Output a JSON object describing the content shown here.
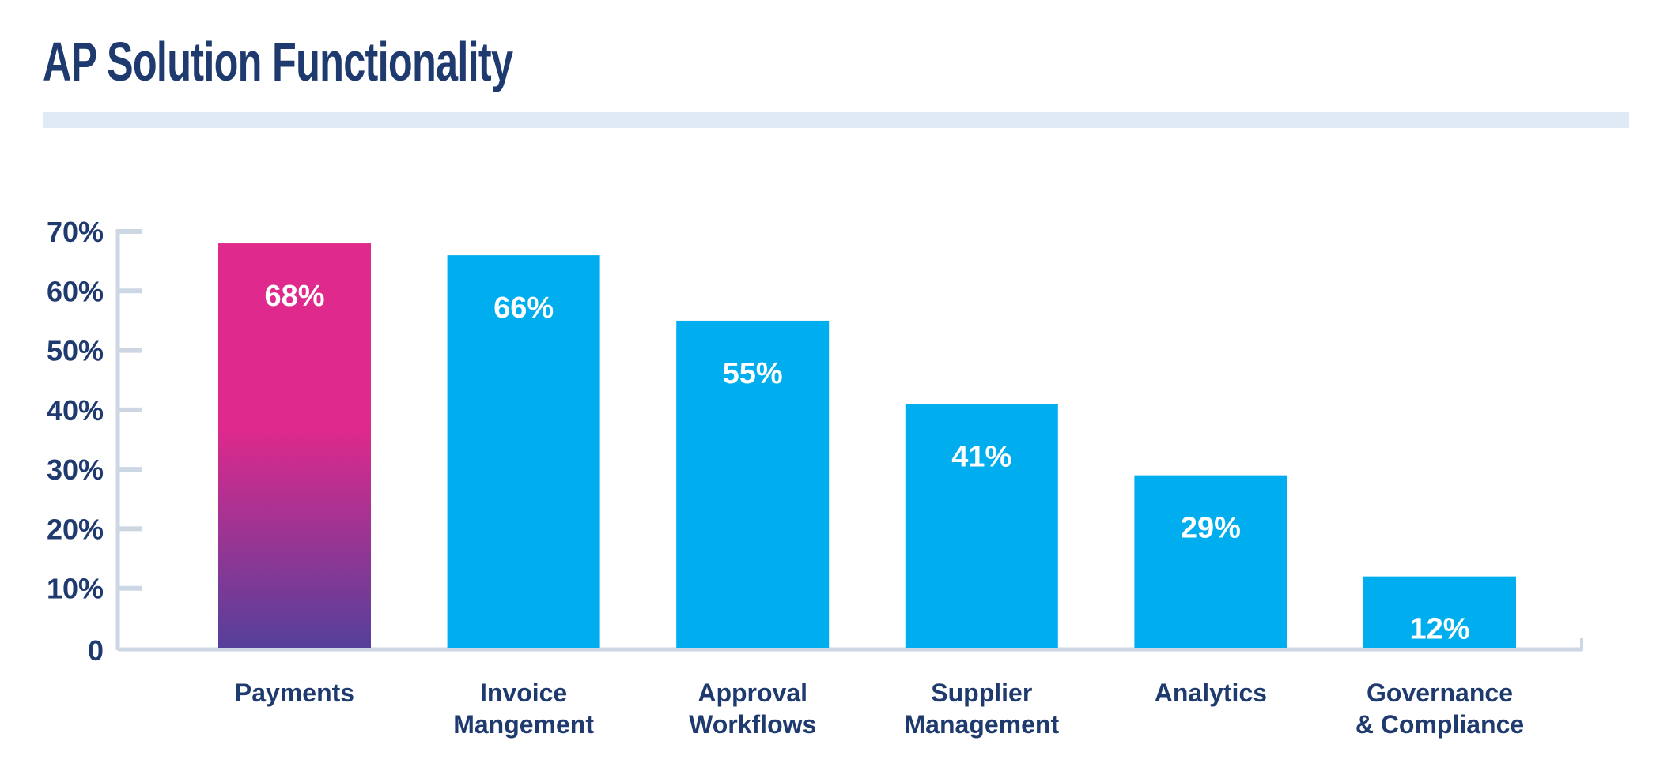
{
  "chart_data": {
    "type": "bar",
    "title": "AP Solution Functionality",
    "categories": [
      [
        "Payments"
      ],
      [
        "Invoice",
        "Mangement"
      ],
      [
        "Approval",
        "Workflows"
      ],
      [
        "Supplier",
        "Management"
      ],
      [
        "Analytics"
      ],
      [
        "Governance",
        "& Compliance"
      ]
    ],
    "values": [
      68,
      66,
      55,
      41,
      29,
      12
    ],
    "data_labels": [
      "68%",
      "66%",
      "55%",
      "41%",
      "29%",
      "12%"
    ],
    "ylim": [
      0,
      70
    ],
    "yticks": [
      0,
      10,
      20,
      30,
      40,
      50,
      60,
      70
    ],
    "ytick_labels": [
      "0",
      "10%",
      "20%",
      "30%",
      "40%",
      "50%",
      "60%",
      "70%"
    ],
    "xlabel": "",
    "ylabel": "",
    "grid": false,
    "colors": {
      "default_bar": "#00aeef",
      "highlight_bar_top": "#e0298c",
      "highlight_bar_bottom": "#55409a",
      "axis": "#cdd7e4",
      "text": "#1f3a6e"
    }
  }
}
